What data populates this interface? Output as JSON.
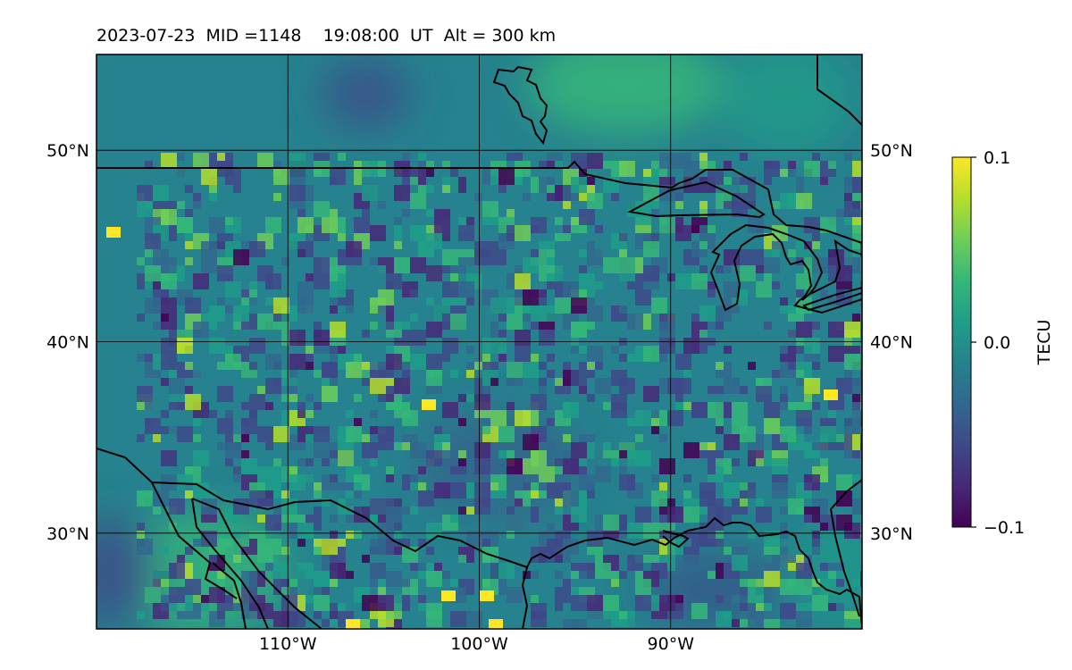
{
  "title": "2023-07-23  MID =1148    19:08:00  UT  Alt = 300 km",
  "map": {
    "lon_range": [
      -120,
      -80
    ],
    "lat_range": [
      25,
      55
    ],
    "lon_ticks": [
      {
        "value": -110,
        "label": "110°W"
      },
      {
        "value": -100,
        "label": "100°W"
      },
      {
        "value": -90,
        "label": "90°W"
      }
    ],
    "lat_ticks": [
      {
        "value": 50,
        "label": "50°N"
      },
      {
        "value": 40,
        "label": "40°N"
      },
      {
        "value": 30,
        "label": "30°N"
      }
    ],
    "gridlines": true,
    "base_color": "#26828e"
  },
  "colorbar": {
    "label": "TECU",
    "ticks": [
      {
        "value": 0.1,
        "label": "0.1"
      },
      {
        "value": 0.0,
        "label": "0.0"
      },
      {
        "value": -0.1,
        "label": "−0.1"
      }
    ],
    "range": [
      -0.1,
      0.1
    ],
    "colormap": "viridis",
    "colors": [
      "#440154",
      "#482878",
      "#3e4989",
      "#31688e",
      "#26828e",
      "#1f9e89",
      "#35b779",
      "#6ece58",
      "#b5de2b",
      "#fde725"
    ]
  }
}
